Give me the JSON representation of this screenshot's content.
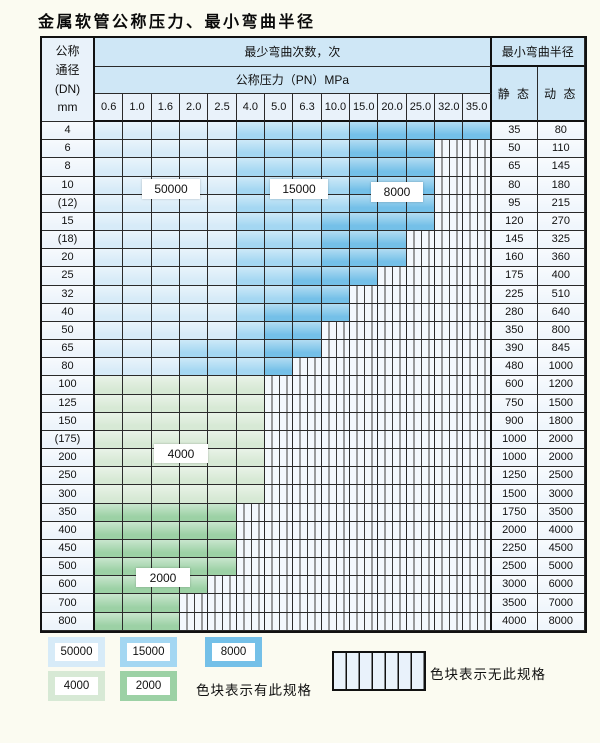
{
  "title": "金属软管公称压力、最小弯曲半径",
  "table": {
    "dn_header_lines": [
      "公称",
      "通径",
      "(DN)",
      "mm"
    ],
    "bend_cycles_header": "最少弯曲次数，次",
    "pressure_header": "公称压力（PN）MPa",
    "pressures": [
      "0.6",
      "1.0",
      "1.6",
      "2.0",
      "2.5",
      "4.0",
      "5.0",
      "6.3",
      "10.0",
      "15.0",
      "20.0",
      "25.0",
      "32.0",
      "35.0"
    ],
    "radius_header": "最小弯曲半径",
    "static_header": "静 态",
    "dynamic_header": "动 态",
    "rows": [
      {
        "dn": "4",
        "static": "35",
        "dynamic": "80",
        "group": "blue",
        "c15": 6,
        "c8": 10,
        "last": 14
      },
      {
        "dn": "6",
        "static": "50",
        "dynamic": "110",
        "group": "blue",
        "c15": 6,
        "c8": 10,
        "last": 12
      },
      {
        "dn": "8",
        "static": "65",
        "dynamic": "145",
        "group": "blue",
        "c15": 6,
        "c8": 10,
        "last": 12
      },
      {
        "dn": "10",
        "static": "80",
        "dynamic": "180",
        "group": "blue",
        "c15": 6,
        "c8": 10,
        "last": 12
      },
      {
        "dn": "(12)",
        "static": "95",
        "dynamic": "215",
        "group": "blue",
        "c15": 6,
        "c8": 10,
        "last": 12
      },
      {
        "dn": "15",
        "static": "120",
        "dynamic": "270",
        "group": "blue",
        "c15": 6,
        "c8": 9,
        "last": 12
      },
      {
        "dn": "(18)",
        "static": "145",
        "dynamic": "325",
        "group": "blue",
        "c15": 6,
        "c8": 9,
        "last": 11
      },
      {
        "dn": "20",
        "static": "160",
        "dynamic": "360",
        "group": "blue",
        "c15": 6,
        "c8": 9,
        "last": 11
      },
      {
        "dn": "25",
        "static": "175",
        "dynamic": "400",
        "group": "blue",
        "c15": 6,
        "c8": 8,
        "last": 10
      },
      {
        "dn": "32",
        "static": "225",
        "dynamic": "510",
        "group": "blue",
        "c15": 6,
        "c8": 8,
        "last": 9
      },
      {
        "dn": "40",
        "static": "280",
        "dynamic": "640",
        "group": "blue",
        "c15": 6,
        "c8": 7,
        "last": 9
      },
      {
        "dn": "50",
        "static": "350",
        "dynamic": "800",
        "group": "blue",
        "c15": 6,
        "c8": 7,
        "last": 8
      },
      {
        "dn": "65",
        "static": "390",
        "dynamic": "845",
        "group": "blue",
        "c15": 4,
        "c8": 7,
        "last": 8
      },
      {
        "dn": "80",
        "static": "480",
        "dynamic": "1000",
        "group": "blue",
        "c15": 4,
        "c8": 7,
        "last": 7
      },
      {
        "dn": "100",
        "static": "600",
        "dynamic": "1200",
        "group": "g4000",
        "last": 6
      },
      {
        "dn": "125",
        "static": "750",
        "dynamic": "1500",
        "group": "g4000",
        "last": 6
      },
      {
        "dn": "150",
        "static": "900",
        "dynamic": "1800",
        "group": "g4000",
        "last": 6
      },
      {
        "dn": "(175)",
        "static": "1000",
        "dynamic": "2000",
        "group": "g4000",
        "last": 6
      },
      {
        "dn": "200",
        "static": "1000",
        "dynamic": "2000",
        "group": "g4000",
        "last": 6
      },
      {
        "dn": "250",
        "static": "1250",
        "dynamic": "2500",
        "group": "g4000",
        "last": 6
      },
      {
        "dn": "300",
        "static": "1500",
        "dynamic": "3000",
        "group": "g4000",
        "last": 6
      },
      {
        "dn": "350",
        "static": "1750",
        "dynamic": "3500",
        "group": "g2000",
        "last": 5
      },
      {
        "dn": "400",
        "static": "2000",
        "dynamic": "4000",
        "group": "g2000",
        "last": 5
      },
      {
        "dn": "450",
        "static": "2250",
        "dynamic": "4500",
        "group": "g2000",
        "last": 5
      },
      {
        "dn": "500",
        "static": "2500",
        "dynamic": "5000",
        "group": "g2000",
        "last": 5
      },
      {
        "dn": "600",
        "static": "3000",
        "dynamic": "6000",
        "group": "g2000",
        "last": 4
      },
      {
        "dn": "700",
        "static": "3500",
        "dynamic": "7000",
        "group": "g2000",
        "last": 3
      },
      {
        "dn": "800",
        "static": "4000",
        "dynamic": "8000",
        "group": "g2000",
        "last": 3
      }
    ],
    "band_labels": {
      "b50000": "50000",
      "b15000": "15000",
      "b8000": "8000",
      "b4000": "4000",
      "b2000": "2000"
    }
  },
  "colors": {
    "b50000": "#d7ebf8",
    "b15000": "#a4d7f2",
    "b8000": "#74c0e8",
    "b4000": "#d7e9d5",
    "b2000": "#9cd1a5"
  },
  "legend": {
    "items": [
      {
        "label": "50000",
        "color_key": "b50000"
      },
      {
        "label": "15000",
        "color_key": "b15000"
      },
      {
        "label": "8000",
        "color_key": "b8000"
      },
      {
        "label": "4000",
        "color_key": "b4000"
      },
      {
        "label": "2000",
        "color_key": "b2000"
      }
    ],
    "available_text": "色块表示有此规格",
    "unavailable_text": "色块表示无此规格"
  }
}
